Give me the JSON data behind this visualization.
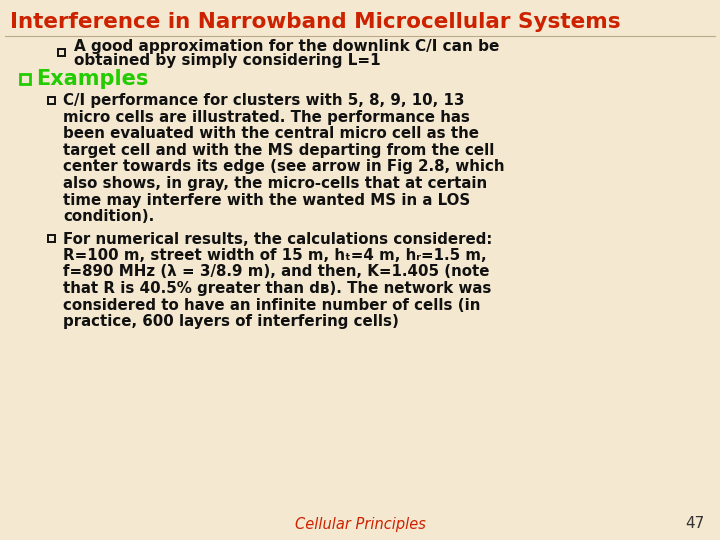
{
  "title": "Interference in Narrowband Microcellular Systems",
  "title_color": "#cc2200",
  "bg_color": "#f5e8d0",
  "footer_text": "Cellular Principles",
  "footer_color": "#cc2200",
  "page_number": "47",
  "page_number_color": "#333333",
  "text_color": "#111111",
  "bullet_color_black": "#111111",
  "bullet_color_green": "#22cc00",
  "examples_color": "#22cc00",
  "line1": "A good approximation for the downlink C/I can be",
  "line2": "obtained by simply considering L=1",
  "examples_label": "Examples",
  "bullet1_lines": [
    "C/I performance for clusters with 5, 8, 9, 10, 13",
    "micro cells are illustrated. The performance has",
    "been evaluated with the central micro cell as the",
    "target cell and with the MS departing from the cell",
    "center towards its edge (see arrow in Fig 2.8, which",
    "also shows, in gray, the micro-cells that at certain",
    "time may interfere with the wanted MS in a LOS",
    "condition)."
  ],
  "bullet2_lines": [
    "For numerical results, the calculations considered:",
    "R=100 m, street width of 15 m, hₜ=4 m, hᵣ=1.5 m,",
    "f=890 MHz (λ = 3/8.9 m), and then, K=1.405 (note",
    "that R is 40.5% greater than dʙ). The network was",
    "considered to have an infinite number of cells (in",
    "practice, 600 layers of interfering cells)"
  ]
}
